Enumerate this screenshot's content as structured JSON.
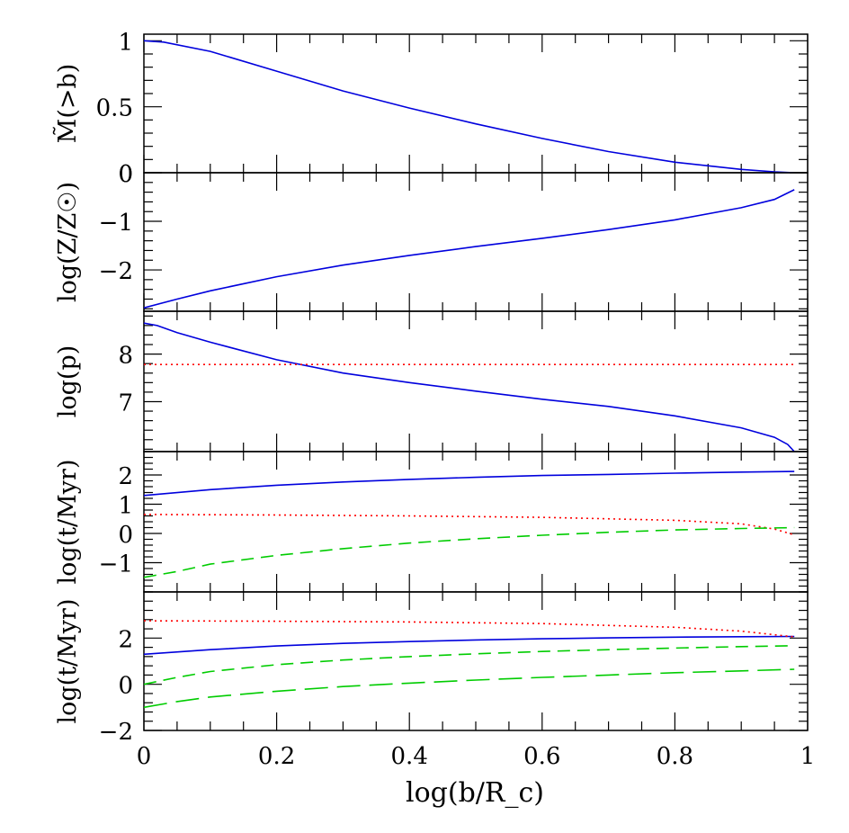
{
  "figure": {
    "xlabel": "log(b/R_c)",
    "x_ticks": [
      "0",
      "0.2",
      "0.4",
      "0.6",
      "0.8",
      "1"
    ]
  },
  "colors": {
    "blue_solid": "#0000dd",
    "red_dotted": "#ff0000",
    "green_dashed": "#00cc00",
    "axes": "#000000"
  },
  "chart_data": [
    {
      "type": "line",
      "ylabel": "M̃(>b)",
      "xlim": [
        0,
        1
      ],
      "ylim": [
        0,
        1.05
      ],
      "y_ticks": [
        "0",
        "0.5",
        "1"
      ],
      "series": [
        {
          "style": "solid",
          "color": "#0000dd",
          "x": [
            0,
            0.03,
            0.1,
            0.2,
            0.3,
            0.4,
            0.5,
            0.6,
            0.7,
            0.8,
            0.9,
            0.95,
            0.98
          ],
          "y": [
            1.0,
            0.99,
            0.92,
            0.77,
            0.62,
            0.49,
            0.37,
            0.26,
            0.16,
            0.08,
            0.025,
            0.007,
            0.0
          ]
        }
      ]
    },
    {
      "type": "line",
      "ylabel": "log(Z/Z☉)",
      "xlim": [
        0,
        1
      ],
      "ylim": [
        -2.85,
        0
      ],
      "y_ticks": [
        "-2",
        "-1",
        "0"
      ],
      "series": [
        {
          "style": "solid",
          "color": "#0000dd",
          "x": [
            0,
            0.05,
            0.1,
            0.2,
            0.3,
            0.4,
            0.5,
            0.6,
            0.7,
            0.8,
            0.9,
            0.95,
            0.98
          ],
          "y": [
            -2.78,
            -2.6,
            -2.43,
            -2.14,
            -1.9,
            -1.7,
            -1.52,
            -1.35,
            -1.17,
            -0.97,
            -0.72,
            -0.55,
            -0.35
          ]
        }
      ]
    },
    {
      "type": "line",
      "ylabel": "log(p)",
      "xlim": [
        0,
        1
      ],
      "ylim": [
        5.95,
        8.9
      ],
      "y_ticks": [
        "7",
        "8"
      ],
      "series": [
        {
          "style": "solid",
          "color": "#0000dd",
          "x": [
            0,
            0.02,
            0.05,
            0.1,
            0.2,
            0.3,
            0.4,
            0.5,
            0.6,
            0.7,
            0.8,
            0.9,
            0.95,
            0.97,
            0.98
          ],
          "y": [
            8.65,
            8.6,
            8.45,
            8.25,
            7.88,
            7.6,
            7.4,
            7.22,
            7.05,
            6.9,
            6.7,
            6.45,
            6.25,
            6.1,
            5.95
          ]
        },
        {
          "style": "dotted",
          "color": "#ff0000",
          "x": [
            0,
            0.98
          ],
          "y": [
            7.78,
            7.78
          ]
        }
      ]
    },
    {
      "type": "line",
      "ylabel": "log(t/Myr)",
      "xlim": [
        0,
        1
      ],
      "ylim": [
        -2,
        2.8
      ],
      "y_ticks": [
        "-1",
        "0",
        "1",
        "2"
      ],
      "series": [
        {
          "style": "solid",
          "color": "#0000dd",
          "x": [
            0,
            0.1,
            0.2,
            0.3,
            0.4,
            0.5,
            0.6,
            0.7,
            0.8,
            0.9,
            0.98
          ],
          "y": [
            1.3,
            1.5,
            1.65,
            1.76,
            1.85,
            1.92,
            1.98,
            2.02,
            2.06,
            2.1,
            2.12
          ]
        },
        {
          "style": "dotted",
          "color": "#ff0000",
          "x": [
            0,
            0.2,
            0.4,
            0.6,
            0.8,
            0.9,
            0.95,
            0.98
          ],
          "y": [
            0.65,
            0.63,
            0.6,
            0.55,
            0.45,
            0.33,
            0.15,
            -0.05
          ]
        },
        {
          "style": "dashed",
          "color": "#00cc00",
          "x": [
            0,
            0.05,
            0.1,
            0.2,
            0.3,
            0.4,
            0.5,
            0.6,
            0.7,
            0.8,
            0.9,
            0.98
          ],
          "y": [
            -1.5,
            -1.3,
            -1.05,
            -0.75,
            -0.52,
            -0.33,
            -0.18,
            -0.06,
            0.04,
            0.12,
            0.17,
            0.2
          ]
        }
      ]
    },
    {
      "type": "line",
      "ylabel": "log(t/Myr)",
      "xlim": [
        0,
        1
      ],
      "ylim": [
        -2,
        4
      ],
      "y_ticks": [
        "-2",
        "0",
        "2"
      ],
      "series": [
        {
          "style": "solid",
          "color": "#0000dd",
          "x": [
            0,
            0.1,
            0.2,
            0.3,
            0.4,
            0.5,
            0.6,
            0.7,
            0.8,
            0.9,
            0.98
          ],
          "y": [
            1.3,
            1.5,
            1.66,
            1.77,
            1.85,
            1.92,
            1.97,
            2.01,
            2.04,
            2.06,
            2.07
          ]
        },
        {
          "style": "dotted",
          "color": "#ff0000",
          "x": [
            0,
            0.2,
            0.4,
            0.6,
            0.8,
            0.9,
            0.98
          ],
          "y": [
            2.75,
            2.73,
            2.7,
            2.63,
            2.47,
            2.3,
            2.05
          ]
        },
        {
          "style": "dashed",
          "color": "#00cc00",
          "x": [
            0,
            0.05,
            0.1,
            0.2,
            0.3,
            0.4,
            0.5,
            0.6,
            0.7,
            0.8,
            0.9,
            0.98
          ],
          "y": [
            0.0,
            0.3,
            0.55,
            0.85,
            1.05,
            1.2,
            1.32,
            1.42,
            1.5,
            1.57,
            1.63,
            1.67
          ]
        },
        {
          "style": "longdash",
          "color": "#00cc00",
          "x": [
            0,
            0.05,
            0.1,
            0.2,
            0.3,
            0.4,
            0.5,
            0.6,
            0.7,
            0.8,
            0.9,
            0.98
          ],
          "y": [
            -1.0,
            -0.75,
            -0.55,
            -0.3,
            -0.1,
            0.05,
            0.18,
            0.3,
            0.4,
            0.5,
            0.58,
            0.65
          ]
        }
      ]
    }
  ]
}
